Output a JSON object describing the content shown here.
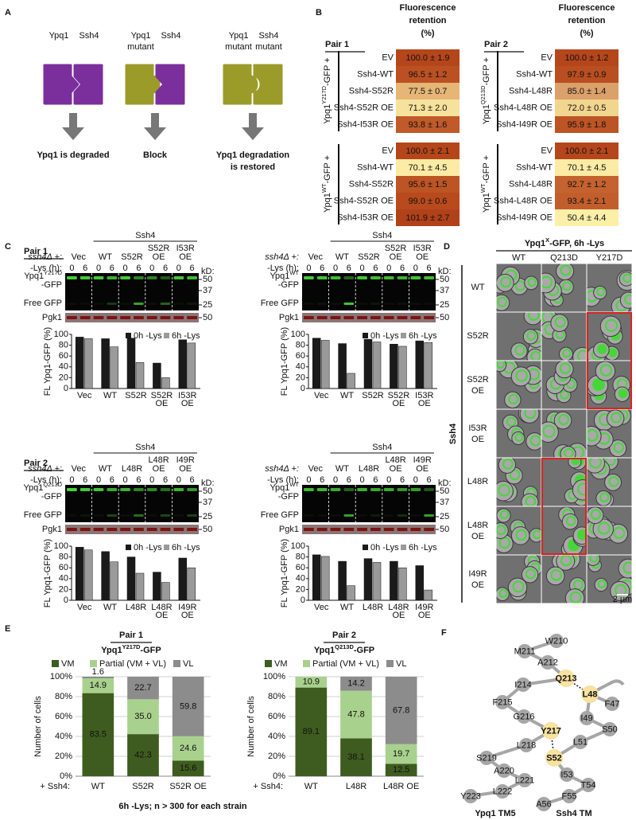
{
  "panel_labels": {
    "a": "A",
    "b": "B",
    "c": "C",
    "d": "D",
    "e": "E",
    "f": "F"
  },
  "panel_a": {
    "columns": [
      {
        "left": "Ypq1",
        "right": "Ssh4",
        "outcome": "Ypq1 is degraded",
        "outcome_color": "#3c8a3c"
      },
      {
        "left": "Ypq1\nmutant",
        "right": "Ssh4",
        "outcome": "Block",
        "outcome_color": "#b3262e"
      },
      {
        "left": "Ypq1\nmutant",
        "right": "Ssh4\nmutant",
        "outcome": "Ypq1 degradation\nis restored",
        "outcome_color": "#3c8a3c"
      }
    ]
  },
  "panel_b": {
    "pairs": [
      {
        "title": "Pair 1",
        "header": "Fluorescence\nretention\n(%)",
        "groups": [
          {
            "label": {
              "base": "Ypq1",
              "sup": "Y217D",
              "rest": "-GFP +"
            },
            "rows": [
              {
                "label": "EV",
                "value": "100.0 ± 1.9",
                "color": "#b5461b"
              },
              {
                "label": "Ssh4-WT",
                "value": "96.5 ± 1.2",
                "color": "#bb5122"
              },
              {
                "label": "Ssh4-S52R",
                "value": "77.5 ± 0.7",
                "color": "#e6b677"
              },
              {
                "label": "Ssh4-S52R OE",
                "value": "71.3 ± 2.0",
                "color": "#f6e29c"
              },
              {
                "label": "Ssh4-I53R OE",
                "value": "93.8 ± 1.6",
                "color": "#c05a28"
              }
            ]
          },
          {
            "label": {
              "base": "Ypq1",
              "sup": "WT",
              "rest": "-GFP +"
            },
            "rows": [
              {
                "label": "EV",
                "value": "100.0 ± 2.1",
                "color": "#b5461b"
              },
              {
                "label": "Ssh4-WT",
                "value": "70.1 ± 4.5",
                "color": "#fbeba4"
              },
              {
                "label": "Ssh4-S52R",
                "value": "95.6 ± 1.5",
                "color": "#bd5424"
              },
              {
                "label": "Ssh4-S52R OE",
                "value": "99.0 ± 0.6",
                "color": "#b84a1d"
              },
              {
                "label": "Ssh4-I53R OE",
                "value": "101.9 ± 2.7",
                "color": "#b0411a"
              }
            ]
          }
        ]
      },
      {
        "title": "Pair 2",
        "header": "Fluorescence\nretention\n(%)",
        "groups": [
          {
            "label": {
              "base": "Ypq1",
              "sup": "Q213D",
              "rest": "-GFP +"
            },
            "rows": [
              {
                "label": "EV",
                "value": "100.0 ± 1.2",
                "color": "#b5461b"
              },
              {
                "label": "Ssh4-WT",
                "value": "97.9 ± 0.9",
                "color": "#b94e20"
              },
              {
                "label": "Ssh4-L48R",
                "value": "85.0 ± 1.4",
                "color": "#dca06a"
              },
              {
                "label": "Ssh4-L48R OE",
                "value": "72.0 ± 0.5",
                "color": "#f2d58e"
              },
              {
                "label": "Ssh4-I49R OE",
                "value": "95.9 ± 1.8",
                "color": "#bd5423"
              }
            ]
          },
          {
            "label": {
              "base": "Ypq1",
              "sup": "WT",
              "rest": "-GFP +"
            },
            "rows": [
              {
                "label": "EV",
                "value": "100.0 ± 2.1",
                "color": "#b5461b"
              },
              {
                "label": "Ssh4-WT",
                "value": "70.1 ± 4.5",
                "color": "#fbeba4"
              },
              {
                "label": "Ssh4-L48R",
                "value": "92.7 ± 1.2",
                "color": "#c46230"
              },
              {
                "label": "Ssh4-L48R OE",
                "value": "93.4 ± 2.1",
                "color": "#c25e2c"
              },
              {
                "label": "Ssh4-I49R OE",
                "value": "50.4 ± 4.4",
                "color": "#fcefa8"
              }
            ]
          }
        ]
      }
    ]
  },
  "panel_c": {
    "pairs": [
      {
        "title": "Pair 1",
        "blots": [
          {
            "strain": "ssh4Δ +:",
            "group": "Ssh4",
            "time_label": "-Lys (h):",
            "times": [
              "0",
              "6"
            ],
            "lanes": [
              "Vec",
              "WT",
              "S52R",
              "S52R\nOE",
              "I53R\nOE"
            ],
            "protein": {
              "base": "Ypq1",
              "sup": "Y217D",
              "rest": "-GFP"
            },
            "free_gfp": "Free GFP",
            "loading": "Pgk1",
            "kd_label": "kD:",
            "markers": [
              50,
              37,
              25,
              50
            ],
            "chart": {
              "type": "bar",
              "ylabel": "FL Ypq1-GFP (%)",
              "categories": [
                "Vec",
                "WT",
                "S52R",
                "S52R\nOE",
                "I53R\nOE"
              ],
              "series": [
                {
                  "name": "0h -Lys",
                  "color": "#1a1a1a",
                  "values": [
                    95,
                    92,
                    93,
                    47,
                    90
                  ]
                },
                {
                  "name": "6h -Lys",
                  "color": "#9a9a9a",
                  "values": [
                    92,
                    77,
                    48,
                    20,
                    84
                  ]
                }
              ],
              "ylim": [
                0,
                100
              ],
              "yticks": [
                0,
                20,
                40,
                60,
                80,
                100
              ]
            }
          },
          {
            "strain": "ssh4Δ +:",
            "group": "Ssh4",
            "time_label": "-Lys (h):",
            "times": [
              "0",
              "6"
            ],
            "lanes": [
              "Vec",
              "WT",
              "S52R",
              "S52R\nOE",
              "I53R\nOE"
            ],
            "protein": {
              "base": "Ypq1",
              "sup": "WT",
              "rest": "-GFP"
            },
            "free_gfp": "Free GFP",
            "loading": "Pgk1",
            "kd_label": "kD:",
            "markers": [
              50,
              37,
              25,
              50
            ],
            "chart": {
              "type": "bar",
              "ylabel": "FL Ypq1-GFP (%)",
              "categories": [
                "Vec",
                "WT",
                "S52R",
                "S52R\nOE",
                "I53R\nOE"
              ],
              "series": [
                {
                  "name": "0h -Lys",
                  "color": "#1a1a1a",
                  "values": [
                    93,
                    83,
                    91,
                    82,
                    88
                  ]
                },
                {
                  "name": "6h -Lys",
                  "color": "#9a9a9a",
                  "values": [
                    89,
                    28,
                    86,
                    78,
                    85
                  ]
                }
              ],
              "ylim": [
                0,
                100
              ],
              "yticks": [
                0,
                20,
                40,
                60,
                80,
                100
              ]
            }
          }
        ]
      },
      {
        "title": "Pair 2",
        "blots": [
          {
            "strain": "ssh4Δ +:",
            "group": "Ssh4",
            "time_label": "-Lys (h):",
            "times": [
              "0",
              "6"
            ],
            "lanes": [
              "Vec",
              "WT",
              "L48R",
              "L48R\nOE",
              "I49R\nOE"
            ],
            "protein": {
              "base": "Ypq1",
              "sup": "Q213D",
              "rest": "-GFP"
            },
            "free_gfp": "Free GFP",
            "loading": "Pgk1",
            "kd_label": "kD:",
            "markers": [
              50,
              37,
              25,
              50
            ],
            "chart": {
              "type": "bar",
              "ylabel": "FL Ypq1-GFP (%)",
              "categories": [
                "Vec",
                "WT",
                "L48R",
                "L48R\nOE",
                "I49R\nOE"
              ],
              "series": [
                {
                  "name": "0h -Lys",
                  "color": "#1a1a1a",
                  "values": [
                    98,
                    90,
                    80,
                    52,
                    78
                  ]
                },
                {
                  "name": "6h -Lys",
                  "color": "#9a9a9a",
                  "values": [
                    93,
                    71,
                    50,
                    33,
                    60
                  ]
                }
              ],
              "ylim": [
                0,
                100
              ],
              "yticks": [
                0,
                20,
                40,
                60,
                80,
                100
              ]
            }
          },
          {
            "strain": "ssh4Δ +:",
            "group": "Ssh4",
            "time_label": "-Lys (h):",
            "times": [
              "0",
              "6"
            ],
            "lanes": [
              "Vec",
              "WT",
              "L48R",
              "L48R\nOE",
              "I49R\nOE"
            ],
            "protein": {
              "base": "Ypq1",
              "sup": "WT",
              "rest": "-GFP"
            },
            "free_gfp": "Free GFP",
            "loading": "Pgk1",
            "kd_label": "kD:",
            "markers": [
              50,
              37,
              25,
              50
            ],
            "chart": {
              "type": "bar",
              "ylabel": "FL Ypq1-GFP (%)",
              "categories": [
                "Vec",
                "WT",
                "L48R",
                "L48R\nOE",
                "I49R\nOE"
              ],
              "series": [
                {
                  "name": "0h -Lys",
                  "color": "#1a1a1a",
                  "values": [
                    84,
                    72,
                    77,
                    72,
                    64
                  ]
                },
                {
                  "name": "6h -Lys",
                  "color": "#9a9a9a",
                  "values": [
                    81,
                    27,
                    70,
                    60,
                    19
                  ]
                }
              ],
              "ylim": [
                0,
                100
              ],
              "yticks": [
                0,
                20,
                40,
                60,
                80,
                100
              ]
            }
          }
        ]
      }
    ]
  },
  "panel_d": {
    "title": {
      "base": "Ypq1",
      "sup": "X",
      "rest": "-GFP, 6h -Lys"
    },
    "columns": [
      "WT",
      "Q213D",
      "Y217D"
    ],
    "rows": [
      "WT",
      "S52R",
      "S52R\nOE",
      "I53R\nOE",
      "L48R",
      "L48R\nOE",
      "I49R\nOE"
    ],
    "group": "Ssh4",
    "scale_bar": "2 µm"
  },
  "panel_e": {
    "charts": [
      {
        "type": "bar",
        "stacked": true,
        "title": "Pair 1",
        "subtitle": {
          "base": "Ypq1",
          "sup": "Y217D",
          "rest": "-GFP"
        },
        "ylabel": "Number of cells",
        "xlabel": "+ Ssh4:",
        "categories": [
          "WT",
          "S52R",
          "S52R OE"
        ],
        "series": [
          {
            "name": "VM",
            "color": "#3e5c1f",
            "values": [
              83.5,
              42.3,
              15.6
            ],
            "value_labels": [
              "83.5",
              "42.3",
              "15.6"
            ]
          },
          {
            "name": "Partial (VM + VL)",
            "color": "#a9d18e",
            "values": [
              14.9,
              35.0,
              24.6
            ],
            "value_labels": [
              "14.9",
              "35.0",
              "24.6"
            ]
          },
          {
            "name": "VL",
            "color": "#8c8c8c",
            "values": [
              1.6,
              22.7,
              59.8
            ],
            "value_labels": [
              "1.6",
              "22.7",
              "59.8"
            ]
          }
        ],
        "ylim": [
          0,
          100
        ],
        "grid": true,
        "yticks": [
          {
            "value": 0,
            "label": "0%"
          },
          {
            "value": 20,
            "label": "20%"
          },
          {
            "value": 40,
            "label": "40%"
          },
          {
            "value": 60,
            "label": "60%"
          },
          {
            "value": 80,
            "label": "80%"
          },
          {
            "value": 100,
            "label": "100%"
          }
        ]
      },
      {
        "type": "bar",
        "stacked": true,
        "title": "Pair 2",
        "subtitle": {
          "base": "Ypq1",
          "sup": "Q213D",
          "rest": "-GFP"
        },
        "ylabel": "Number of cells",
        "xlabel": "+ Ssh4:",
        "categories": [
          "WT",
          "L48R",
          "L48R OE"
        ],
        "series": [
          {
            "name": "VM",
            "color": "#3e5c1f",
            "values": [
              89.1,
              38.1,
              12.5
            ],
            "value_labels": [
              "89.1",
              "38.1",
              "12.5"
            ]
          },
          {
            "name": "Partial (VM + VL)",
            "color": "#a9d18e",
            "values": [
              10.9,
              47.8,
              19.7
            ],
            "value_labels": [
              "10.9",
              "47.8",
              "19.7"
            ]
          },
          {
            "name": "VL",
            "color": "#8c8c8c",
            "values": [
              0,
              14.2,
              67.8
            ],
            "value_labels": [
              null,
              "14.2",
              "67.8"
            ]
          }
        ],
        "ylim": [
          0,
          100
        ],
        "grid": true,
        "yticks": [
          {
            "value": 0,
            "label": "0%"
          },
          {
            "value": 20,
            "label": "20%"
          },
          {
            "value": 40,
            "label": "40%"
          },
          {
            "value": 60,
            "label": "60%"
          },
          {
            "value": 80,
            "label": "80%"
          },
          {
            "value": 100,
            "label": "100%"
          }
        ]
      }
    ],
    "footnote": "6h -Lys; n > 300 for each strain"
  },
  "panel_f": {
    "ypq1": [
      {
        "label": "W210",
        "highlight": false
      },
      {
        "label": "M211",
        "highlight": false
      },
      {
        "label": "A212",
        "highlight": false
      },
      {
        "label": "Q213",
        "highlight": true
      },
      {
        "label": "I214",
        "highlight": false
      },
      {
        "label": "F215",
        "highlight": false
      },
      {
        "label": "G216",
        "highlight": false
      },
      {
        "label": "Y217",
        "highlight": true
      },
      {
        "label": "L218",
        "highlight": false
      },
      {
        "label": "S219",
        "highlight": false
      },
      {
        "label": "A220",
        "highlight": false
      },
      {
        "label": "L221",
        "highlight": false
      },
      {
        "label": "L222",
        "highlight": false
      },
      {
        "label": "Y223",
        "highlight": false
      }
    ],
    "ssh4": [
      {
        "label": "F47",
        "highlight": false
      },
      {
        "label": "L48",
        "highlight": true
      },
      {
        "label": "I49",
        "highlight": false
      },
      {
        "label": "S50",
        "highlight": false
      },
      {
        "label": "L51",
        "highlight": false
      },
      {
        "label": "S52",
        "highlight": true
      },
      {
        "label": "I53",
        "highlight": false
      },
      {
        "label": "T54",
        "highlight": false
      },
      {
        "label": "F55",
        "highlight": false
      },
      {
        "label": "A56",
        "highlight": false
      }
    ],
    "labels": [
      "Ypq1 TM5",
      "Ssh4 TM"
    ]
  }
}
